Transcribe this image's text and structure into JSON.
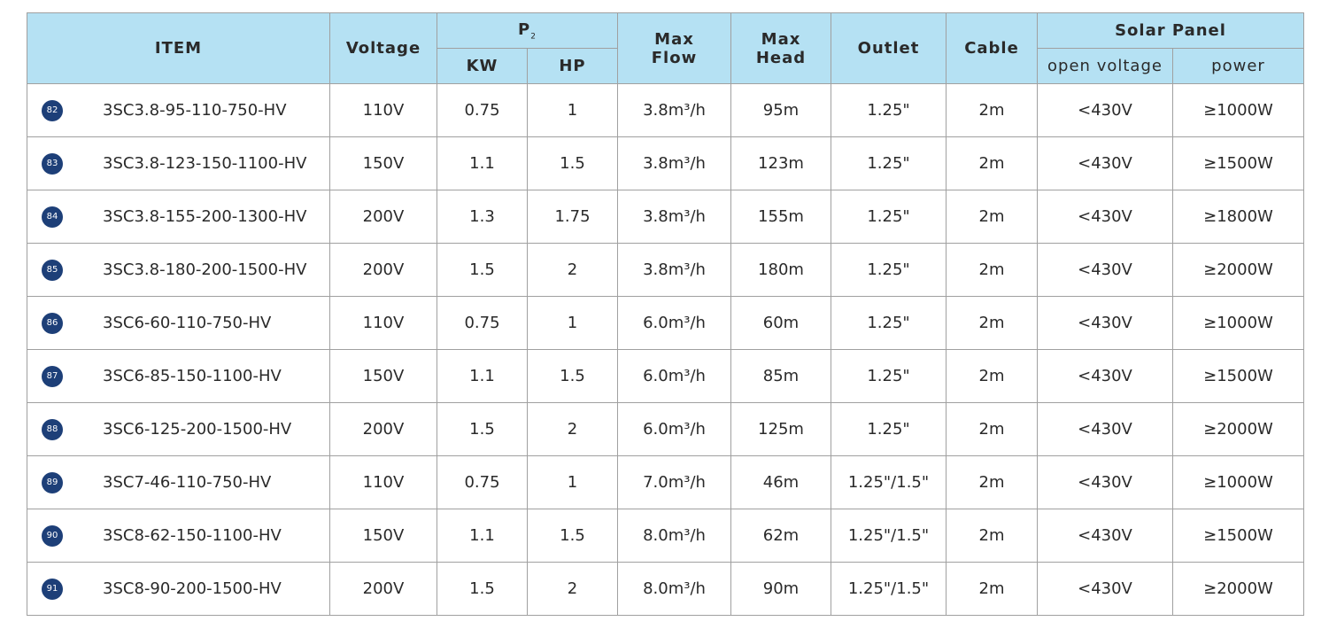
{
  "header": {
    "item": "ITEM",
    "voltage": "Voltage",
    "p2": {
      "base": "P",
      "sub": "2"
    },
    "kw": "KW",
    "hp": "HP",
    "max_flow": [
      "Max",
      "Flow"
    ],
    "max_head": [
      "Max",
      "Head"
    ],
    "outlet": "Outlet",
    "cable": "Cable",
    "solar_panel": "Solar Panel",
    "open_voltage": "open voltage",
    "power": "power"
  },
  "table": {
    "rows": [
      [
        "82",
        "3SC3.8-95-110-750-HV",
        "110V",
        "0.75",
        "1",
        "3.8m³/h",
        "95m",
        "1.25\"",
        "2m",
        "<430V",
        "≥1000W"
      ],
      [
        "83",
        "3SC3.8-123-150-1100-HV",
        "150V",
        "1.1",
        "1.5",
        "3.8m³/h",
        "123m",
        "1.25\"",
        "2m",
        "<430V",
        "≥1500W"
      ],
      [
        "84",
        "3SC3.8-155-200-1300-HV",
        "200V",
        "1.3",
        "1.75",
        "3.8m³/h",
        "155m",
        "1.25\"",
        "2m",
        "<430V",
        "≥1800W"
      ],
      [
        "85",
        "3SC3.8-180-200-1500-HV",
        "200V",
        "1.5",
        "2",
        "3.8m³/h",
        "180m",
        "1.25\"",
        "2m",
        "<430V",
        "≥2000W"
      ],
      [
        "86",
        "3SC6-60-110-750-HV",
        "110V",
        "0.75",
        "1",
        "6.0m³/h",
        "60m",
        "1.25\"",
        "2m",
        "<430V",
        "≥1000W"
      ],
      [
        "87",
        "3SC6-85-150-1100-HV",
        "150V",
        "1.1",
        "1.5",
        "6.0m³/h",
        "85m",
        "1.25\"",
        "2m",
        "<430V",
        "≥1500W"
      ],
      [
        "88",
        "3SC6-125-200-1500-HV",
        "200V",
        "1.5",
        "2",
        "6.0m³/h",
        "125m",
        "1.25\"",
        "2m",
        "<430V",
        "≥2000W"
      ],
      [
        "89",
        "3SC7-46-110-750-HV",
        "110V",
        "0.75",
        "1",
        "7.0m³/h",
        "46m",
        "1.25\"/1.5\"",
        "2m",
        "<430V",
        "≥1000W"
      ],
      [
        "90",
        "3SC8-62-150-1100-HV",
        "150V",
        "1.1",
        "1.5",
        "8.0m³/h",
        "62m",
        "1.25\"/1.5\"",
        "2m",
        "<430V",
        "≥1500W"
      ],
      [
        "91",
        "3SC8-90-200-1500-HV",
        "200V",
        "1.5",
        "2",
        "8.0m³/h",
        "90m",
        "1.25\"/1.5\"",
        "2m",
        "<430V",
        "≥2000W"
      ]
    ]
  }
}
